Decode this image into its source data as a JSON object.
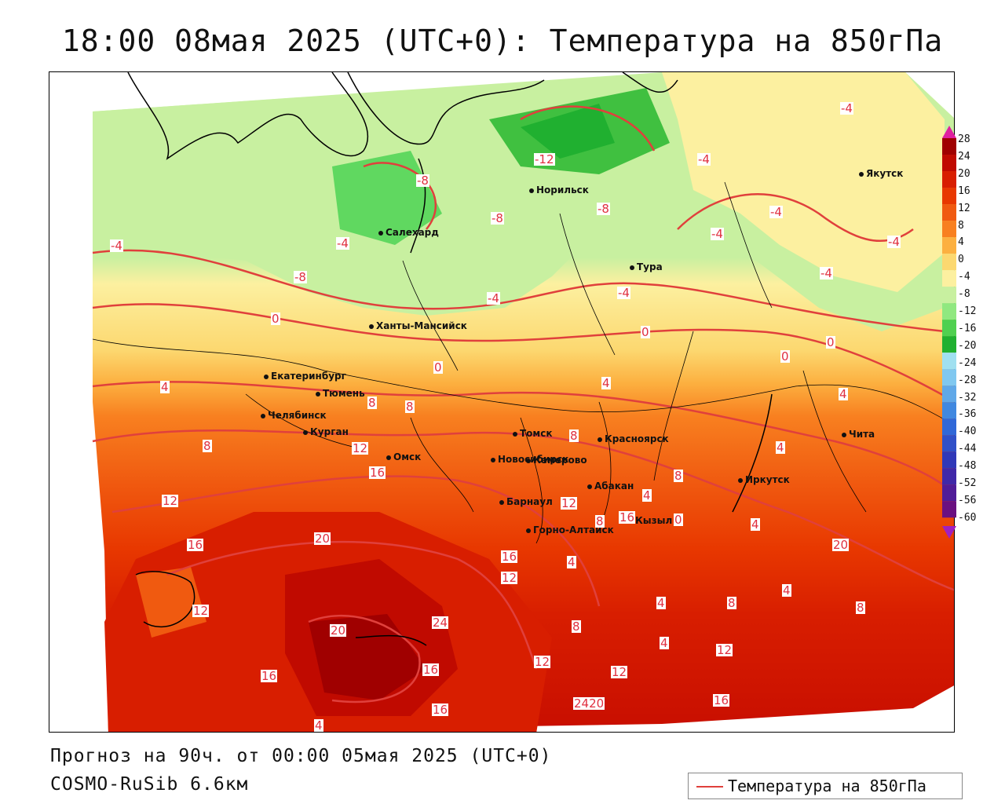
{
  "title": "18:00 08мая 2025 (UTC+0): Температура на 850гПа",
  "footer": {
    "forecast": "Прогноз на 90ч. от 00:00 05мая 2025 (UTC+0)",
    "model": "COSMO-RuSib 6.6км"
  },
  "legend": {
    "label": "Температура на 850гПа",
    "line_color": "#e0403c"
  },
  "color_scale": {
    "values": [
      "28",
      "24",
      "20",
      "16",
      "12",
      "8",
      "4",
      "0",
      "-4",
      "-8",
      "-12",
      "-16",
      "-20",
      "-24",
      "-28",
      "-32",
      "-36",
      "-40",
      "-44",
      "-48",
      "-52",
      "-56",
      "-60"
    ],
    "colors": [
      "#a00000",
      "#c00a00",
      "#d81e00",
      "#e83800",
      "#f05a10",
      "#f88020",
      "#fcb040",
      "#fcd870",
      "#fcf0a0",
      "#c8f0a0",
      "#90e880",
      "#50d050",
      "#20b030",
      "#a0e0f0",
      "#80c8f0",
      "#60a8e8",
      "#4088e0",
      "#3068d8",
      "#3050c8",
      "#3038b8",
      "#4028a8",
      "#501c98",
      "#6a1080"
    ]
  },
  "cities": [
    {
      "name": "Якутск"
    },
    {
      "name": "Норильск"
    },
    {
      "name": "Салехард"
    },
    {
      "name": "Тура"
    },
    {
      "name": "Ханты-Мансийск"
    },
    {
      "name": "Екатеринбург"
    },
    {
      "name": "Тюмень"
    },
    {
      "name": "Челябинск"
    },
    {
      "name": "Курган"
    },
    {
      "name": "Омск"
    },
    {
      "name": "Томск"
    },
    {
      "name": "Красноярск"
    },
    {
      "name": "Новосибирск"
    },
    {
      "name": "Кемерово"
    },
    {
      "name": "Барнаул"
    },
    {
      "name": "Абакан"
    },
    {
      "name": "Горно-Алтайск"
    },
    {
      "name": "Кызыл"
    },
    {
      "name": "Иркутск"
    },
    {
      "name": "Чита"
    }
  ],
  "isotherm_labels": [
    "-4",
    "-12",
    "-4",
    "-8",
    "-4",
    "-8",
    "-8",
    "-4",
    "-4",
    "-4",
    "-4",
    "-4",
    "-4",
    "-8",
    "-4",
    "0",
    "0",
    "0",
    "0",
    "0",
    "4",
    "4",
    "8",
    "8",
    "8",
    "4",
    "4",
    "8",
    "12",
    "16",
    "12",
    "16",
    "20",
    "12",
    "16",
    "12",
    "12",
    "16",
    "4",
    "4",
    "8",
    "8",
    "4",
    "4",
    "0",
    "4",
    "8",
    "8",
    "8",
    "4",
    "12",
    "20",
    "24",
    "20",
    "16",
    "16",
    "12",
    "12",
    "2420",
    "16",
    "16",
    "4"
  ]
}
